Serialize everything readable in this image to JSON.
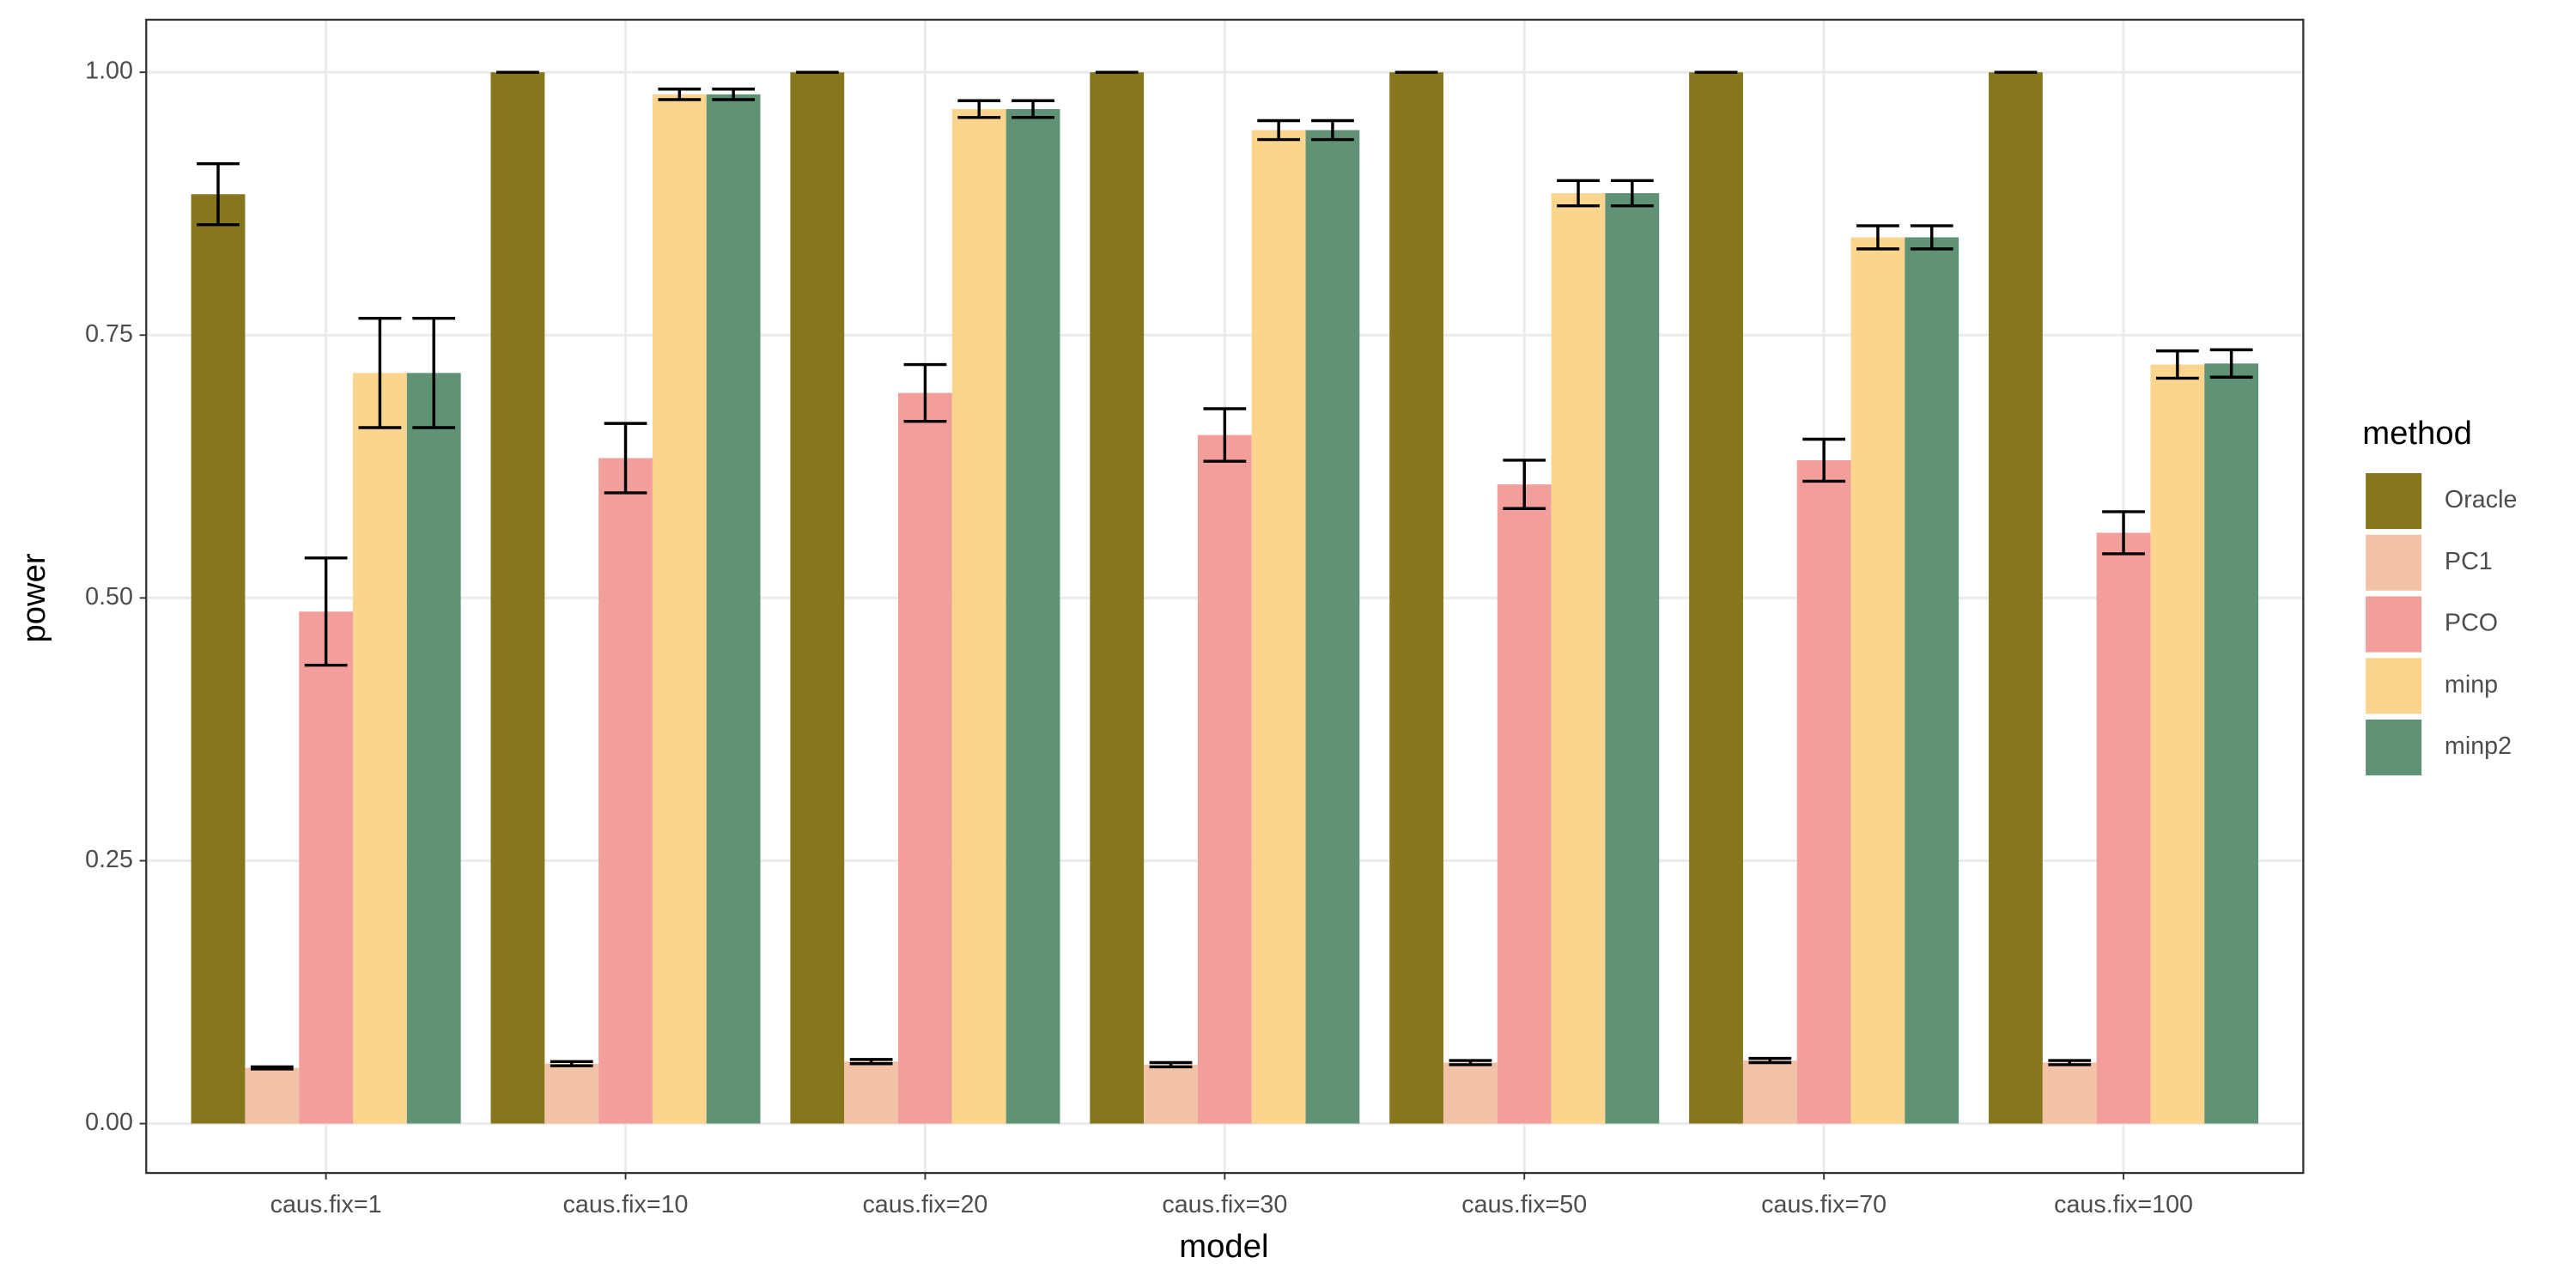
{
  "chart_data": {
    "type": "bar",
    "x_label": "model",
    "y_label": "power",
    "categories": [
      "caus.fix=1",
      "caus.fix=10",
      "caus.fix=20",
      "caus.fix=30",
      "caus.fix=50",
      "caus.fix=70",
      "caus.fix=100"
    ],
    "legend_title": "method",
    "series": [
      {
        "name": "Oracle",
        "color": "#86761c",
        "values": [
          0.884,
          1.0,
          1.0,
          1.0,
          1.0,
          1.0,
          1.0
        ],
        "errors": [
          0.029,
          0,
          0,
          0,
          0,
          0,
          0
        ]
      },
      {
        "name": "PC1",
        "color": "#f2c2a6",
        "values": [
          0.053,
          0.057,
          0.059,
          0.056,
          0.058,
          0.06,
          0.058
        ],
        "errors": [
          0.001,
          0.002,
          0.002,
          0.002,
          0.002,
          0.002,
          0.002
        ]
      },
      {
        "name": "PCO",
        "color": "#f29e9a",
        "values": [
          0.487,
          0.633,
          0.695,
          0.655,
          0.608,
          0.631,
          0.562
        ],
        "errors": [
          0.051,
          0.033,
          0.027,
          0.025,
          0.023,
          0.02,
          0.02
        ]
      },
      {
        "name": "minp",
        "color": "#fbd48e",
        "values": [
          0.714,
          0.979,
          0.965,
          0.945,
          0.885,
          0.843,
          0.722
        ],
        "errors": [
          0.052,
          0.005,
          0.008,
          0.009,
          0.012,
          0.011,
          0.013
        ]
      },
      {
        "name": "minp2",
        "color": "#609276",
        "values": [
          0.714,
          0.979,
          0.965,
          0.945,
          0.885,
          0.843,
          0.723
        ],
        "errors": [
          0.052,
          0.005,
          0.008,
          0.009,
          0.012,
          0.011,
          0.013
        ]
      }
    ],
    "ylim": [
      -0.047,
      1.05
    ],
    "yticks": [
      {
        "value": 0,
        "label": "0.00"
      },
      {
        "value": 0.25,
        "label": "0.25"
      },
      {
        "value": 0.5,
        "label": "0.50"
      },
      {
        "value": 0.75,
        "label": "0.75"
      },
      {
        "value": 1,
        "label": "1.00"
      }
    ],
    "grid": true,
    "legend_position": "right"
  }
}
